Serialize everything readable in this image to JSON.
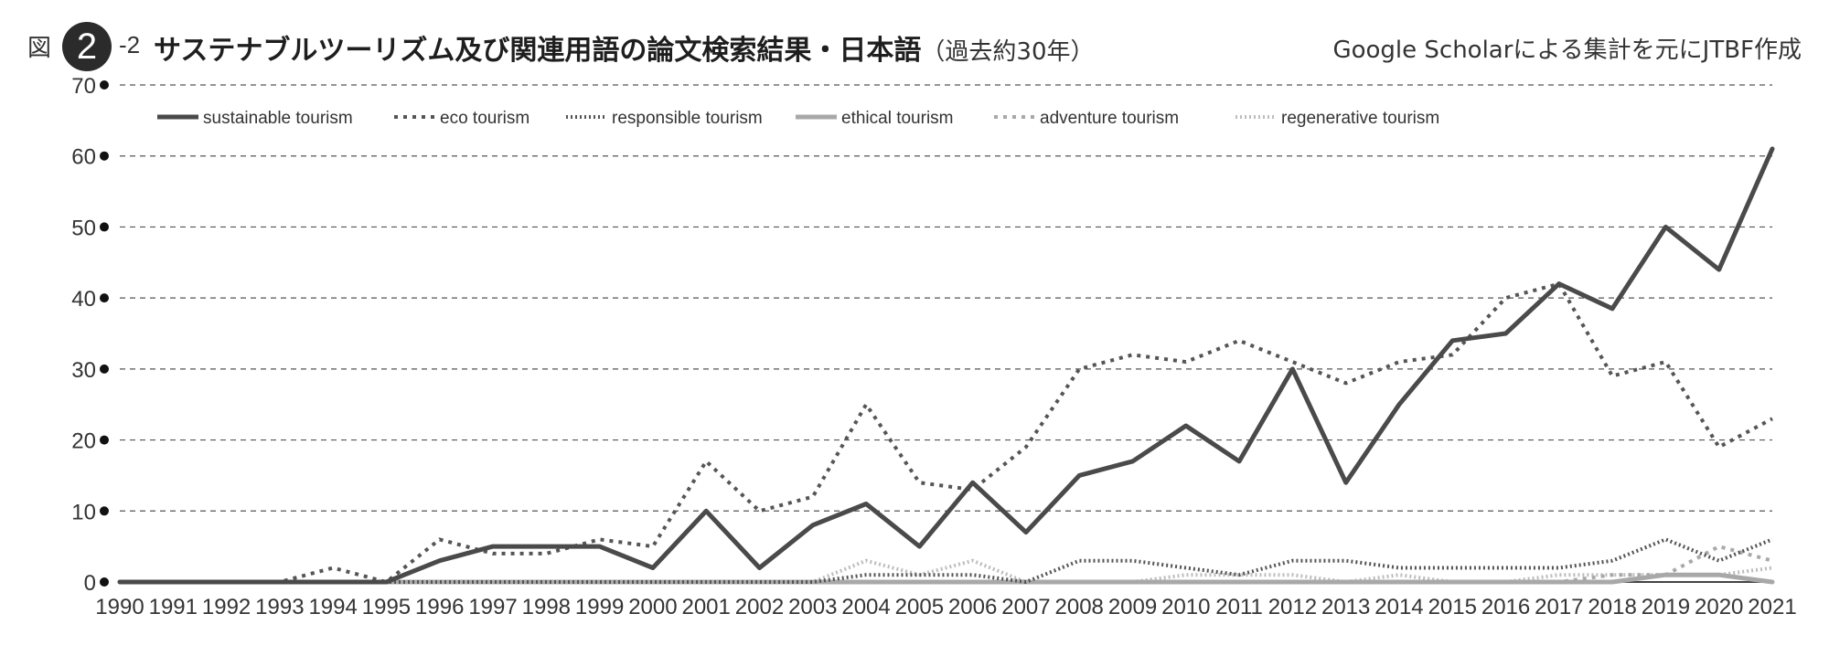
{
  "header": {
    "figure_prefix": "図",
    "figure_number": "2",
    "figure_sub": "-2",
    "title": "サステナブルツーリズム及び関連用語の論文検索結果・日本語",
    "title_sub": "（過去約30年）",
    "source": "Google Scholarによる集計を元にJTBF作成"
  },
  "chart_data": {
    "type": "line",
    "x": [
      1990,
      1991,
      1992,
      1993,
      1994,
      1995,
      1996,
      1997,
      1998,
      1999,
      2000,
      2001,
      2002,
      2003,
      2004,
      2005,
      2006,
      2007,
      2008,
      2009,
      2010,
      2011,
      2012,
      2013,
      2014,
      2015,
      2016,
      2017,
      2018,
      2019,
      2020,
      2021
    ],
    "x_tick_labels": [
      "1990",
      "1991",
      "1992",
      "1993",
      "1994",
      "1995",
      "1996",
      "1997",
      "1998",
      "1999",
      "2000",
      "2001",
      "2002",
      "2003",
      "2004",
      "2005",
      "2006",
      "2007",
      "2008",
      "2009",
      "2010",
      "2011",
      "2012",
      "2013",
      "2014",
      "2015",
      "2016",
      "2017",
      "2018",
      "2019",
      "2020",
      "2021"
    ],
    "ylim": [
      0,
      70
    ],
    "y_ticks": [
      0,
      10,
      20,
      30,
      40,
      50,
      60,
      70
    ],
    "y_tick_labels": [
      "0",
      "10",
      "20",
      "30",
      "40",
      "50",
      "60",
      "70"
    ],
    "grid": "horizontal dashed",
    "legend_position": "top",
    "series": [
      {
        "name": "sustainable tourism",
        "style": "solid",
        "color": "#4a4a4a",
        "width": 5,
        "values": [
          0,
          0,
          0,
          0,
          0,
          0,
          3,
          5,
          5,
          5,
          2,
          10,
          2,
          8,
          11,
          5,
          14,
          7,
          15,
          17,
          22,
          17,
          30,
          14,
          25,
          34,
          35,
          42,
          38.5,
          50,
          44,
          61
        ]
      },
      {
        "name": "eco tourism",
        "style": "dotted",
        "color": "#555555",
        "width": 4,
        "values": [
          0,
          0,
          0,
          0,
          2,
          0,
          6,
          4,
          4,
          6,
          5,
          17,
          10,
          12,
          25,
          14,
          13,
          19,
          30,
          32,
          31,
          34,
          31,
          28,
          31,
          32,
          40,
          42,
          29,
          31,
          19,
          23
        ]
      },
      {
        "name": "responsible tourism",
        "style": "fine-dotted",
        "color": "#555555",
        "width": 4,
        "values": [
          0,
          0,
          0,
          0,
          0,
          0,
          0,
          0,
          0,
          0,
          0,
          0,
          0,
          0,
          1,
          1,
          1,
          0,
          3,
          3,
          2,
          1,
          3,
          3,
          2,
          2,
          2,
          2,
          3,
          6,
          3,
          6
        ]
      },
      {
        "name": "ethical tourism",
        "style": "solid",
        "color": "#a8a8a8",
        "width": 5,
        "values": [
          0,
          0,
          0,
          0,
          0,
          0,
          0,
          0,
          0,
          0,
          0,
          0,
          0,
          0,
          0,
          0,
          0,
          0,
          0,
          0,
          0,
          0,
          0,
          0,
          0,
          0,
          0,
          0,
          0,
          1,
          1,
          0
        ]
      },
      {
        "name": "adventure tourism",
        "style": "dotted",
        "color": "#a8a8a8",
        "width": 4,
        "values": [
          0,
          0,
          0,
          0,
          0,
          0,
          0,
          0,
          0,
          0,
          0,
          0,
          0,
          0,
          0,
          0,
          0,
          0,
          0,
          0,
          0,
          0,
          0,
          0,
          0,
          0,
          0,
          0,
          1,
          1,
          5,
          3
        ]
      },
      {
        "name": "regenerative tourism",
        "style": "fine-dotted",
        "color": "#bdbdbd",
        "width": 4,
        "values": [
          0,
          0,
          0,
          0,
          0,
          0,
          0,
          0,
          0,
          0,
          0,
          0,
          0,
          0,
          3,
          1,
          3,
          0,
          0,
          0,
          1,
          1,
          1,
          0,
          1,
          0,
          0,
          1,
          1,
          1,
          1,
          2
        ]
      }
    ]
  }
}
